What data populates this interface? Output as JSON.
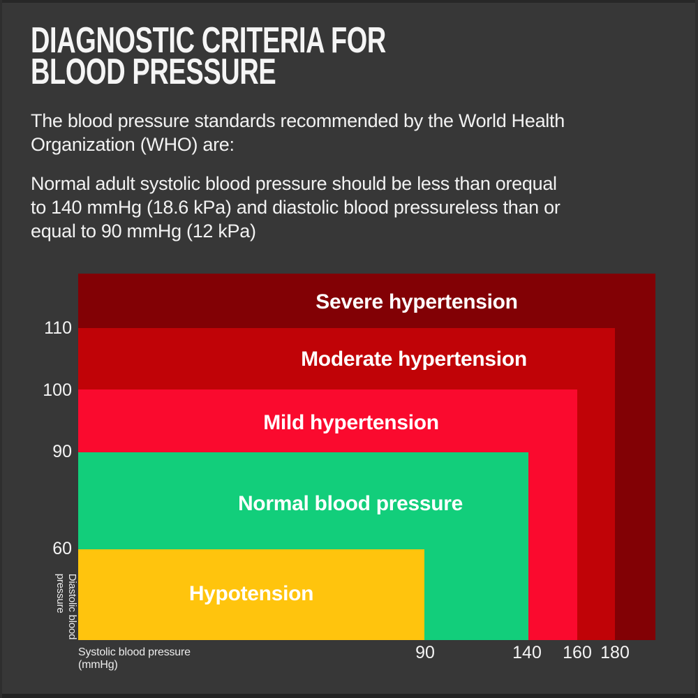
{
  "colors": {
    "background": "#373737",
    "text_primary": "#F5F5F5",
    "zone_severe": "#820105",
    "zone_moderate": "#C00307",
    "zone_mild": "#FA0A2E",
    "zone_normal": "#12CE7B",
    "zone_hypotension": "#FFC40D"
  },
  "header": {
    "title_lines": [
      "DIAGNOSTIC CRITERIA FOR",
      "BLOOD PRESSURE"
    ]
  },
  "paragraphs": {
    "intro_lines": [
      "The blood pressure standards recommended by the World Health",
      "Organization (WHO) are:"
    ],
    "criteria_lines": [
      "Normal adult systolic blood pressure should be less than orequal",
      "to 140 mmHg (18.6 kPa) and diastolic blood pressureless than or",
      "equal to 90 mmHg (12 kPa)"
    ]
  },
  "chart_data": {
    "type": "area",
    "title": "",
    "xlabel": "Systolic blood pressure (mmHg)",
    "ylabel": "Diastolic blood pressure",
    "grid": false,
    "legend": "none",
    "x_ticks": [
      "90",
      "140",
      "160",
      "180"
    ],
    "y_ticks": [
      "110",
      "100",
      "90",
      "60"
    ],
    "x_axis_caption_lines": [
      "Systolic blood pressure",
      "(mmHg)"
    ],
    "y_axis_caption_lines": [
      "Diastolic blood",
      "pressure"
    ],
    "zones": [
      {
        "label": "Severe hypertension",
        "color": "#820105",
        "systolic_mmHg": "> 180",
        "diastolic_mmHg": "> 110"
      },
      {
        "label": "Moderate hypertension",
        "color": "#C00307",
        "systolic_mmHg": "160-180",
        "diastolic_mmHg": "100-110"
      },
      {
        "label": "Mild hypertension",
        "color": "#FA0A2E",
        "systolic_mmHg": "140-160",
        "diastolic_mmHg": "90-100"
      },
      {
        "label": "Normal blood pressure",
        "color": "#12CE7B",
        "systolic_mmHg": "90-140",
        "diastolic_mmHg": "60-90"
      },
      {
        "label": "Hypotension",
        "color": "#FFC40D",
        "systolic_mmHg": "< 90",
        "diastolic_mmHg": "< 60"
      }
    ]
  }
}
